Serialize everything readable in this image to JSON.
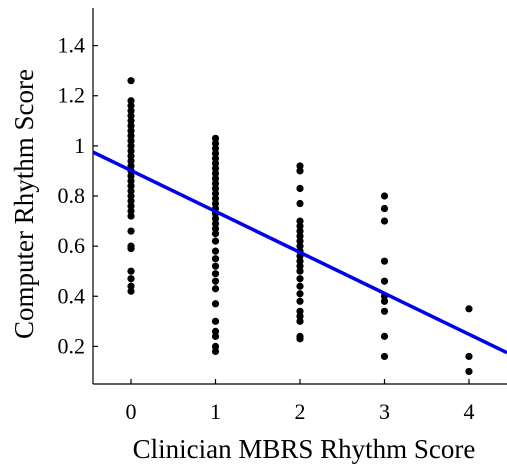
{
  "chart_data": {
    "type": "scatter",
    "title": "",
    "xlabel": "Clinician MBRS Rhythm Score",
    "ylabel": "Computer Rhythm Score",
    "xlim": [
      -0.45,
      4.45
    ],
    "ylim": [
      0.05,
      1.55
    ],
    "xticks": [
      0,
      1,
      2,
      3,
      4
    ],
    "yticks": [
      0.2,
      0.4,
      0.6,
      0.8,
      1,
      1.2,
      1.4
    ],
    "ytick_labels": [
      "0.2",
      "0.4",
      "0.6",
      "0.8",
      "1",
      "1.2",
      "1.4"
    ],
    "grid": false,
    "series": [
      {
        "color": "#000000",
        "points": [
          [
            0,
            1.26
          ],
          [
            0,
            1.18
          ],
          [
            0,
            1.16
          ],
          [
            0,
            1.14
          ],
          [
            0,
            1.12
          ],
          [
            0,
            1.1
          ],
          [
            0,
            1.08
          ],
          [
            0,
            1.06
          ],
          [
            0,
            1.04
          ],
          [
            0,
            1.02
          ],
          [
            0,
            1.0
          ],
          [
            0,
            0.98
          ],
          [
            0,
            0.96
          ],
          [
            0,
            0.94
          ],
          [
            0,
            0.92
          ],
          [
            0,
            0.9
          ],
          [
            0,
            0.88
          ],
          [
            0,
            0.86
          ],
          [
            0,
            0.84
          ],
          [
            0,
            0.82
          ],
          [
            0,
            0.8
          ],
          [
            0,
            0.78
          ],
          [
            0,
            0.76
          ],
          [
            0,
            0.74
          ],
          [
            0,
            0.72
          ],
          [
            0,
            0.66
          ],
          [
            0,
            0.6
          ],
          [
            0,
            0.59
          ],
          [
            0,
            0.5
          ],
          [
            0,
            0.47
          ],
          [
            0,
            0.44
          ],
          [
            0,
            0.42
          ],
          [
            1,
            1.03
          ],
          [
            1,
            1.01
          ],
          [
            1,
            0.99
          ],
          [
            1,
            0.97
          ],
          [
            1,
            0.95
          ],
          [
            1,
            0.93
          ],
          [
            1,
            0.91
          ],
          [
            1,
            0.89
          ],
          [
            1,
            0.87
          ],
          [
            1,
            0.85
          ],
          [
            1,
            0.83
          ],
          [
            1,
            0.81
          ],
          [
            1,
            0.79
          ],
          [
            1,
            0.77
          ],
          [
            1,
            0.75
          ],
          [
            1,
            0.73
          ],
          [
            1,
            0.71
          ],
          [
            1,
            0.69
          ],
          [
            1,
            0.67
          ],
          [
            1,
            0.65
          ],
          [
            1,
            0.62
          ],
          [
            1,
            0.58
          ],
          [
            1,
            0.55
          ],
          [
            1,
            0.52
          ],
          [
            1,
            0.49
          ],
          [
            1,
            0.46
          ],
          [
            1,
            0.43
          ],
          [
            1,
            0.37
          ],
          [
            1,
            0.3
          ],
          [
            1,
            0.26
          ],
          [
            1,
            0.24
          ],
          [
            1,
            0.2
          ],
          [
            1,
            0.18
          ],
          [
            2,
            0.92
          ],
          [
            2,
            0.9
          ],
          [
            2,
            0.83
          ],
          [
            2,
            0.77
          ],
          [
            2,
            0.7
          ],
          [
            2,
            0.68
          ],
          [
            2,
            0.66
          ],
          [
            2,
            0.64
          ],
          [
            2,
            0.62
          ],
          [
            2,
            0.6
          ],
          [
            2,
            0.58
          ],
          [
            2,
            0.56
          ],
          [
            2,
            0.54
          ],
          [
            2,
            0.52
          ],
          [
            2,
            0.5
          ],
          [
            2,
            0.47
          ],
          [
            2,
            0.44
          ],
          [
            2,
            0.41
          ],
          [
            2,
            0.38
          ],
          [
            2,
            0.34
          ],
          [
            2,
            0.32
          ],
          [
            2,
            0.3
          ],
          [
            2,
            0.24
          ],
          [
            2,
            0.23
          ],
          [
            3,
            0.8
          ],
          [
            3,
            0.75
          ],
          [
            3,
            0.7
          ],
          [
            3,
            0.54
          ],
          [
            3,
            0.46
          ],
          [
            3,
            0.4
          ],
          [
            3,
            0.38
          ],
          [
            3,
            0.34
          ],
          [
            3,
            0.24
          ],
          [
            3,
            0.16
          ],
          [
            4,
            0.35
          ],
          [
            4,
            0.16
          ],
          [
            4,
            0.1
          ]
        ]
      }
    ],
    "fit_line": {
      "color": "#0000ee",
      "x": [
        -0.45,
        4.45
      ],
      "y": [
        0.975,
        0.175
      ]
    }
  }
}
